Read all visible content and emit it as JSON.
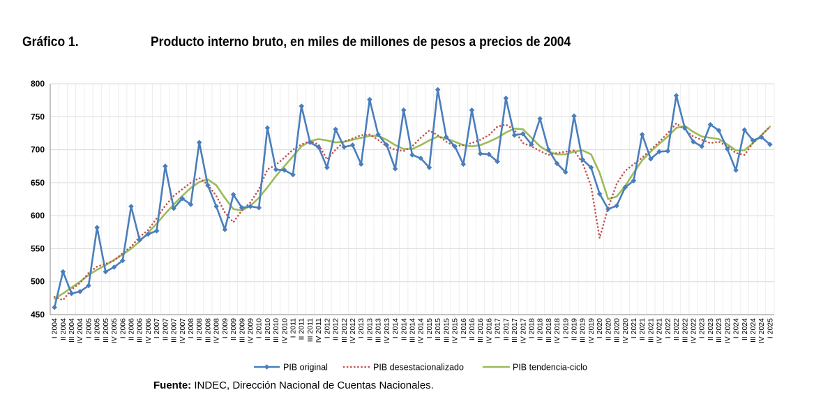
{
  "header": {
    "figure_label": "Gráfico 1.",
    "title": "Producto interno bruto, en miles de millones de pesos a precios de 2004"
  },
  "footer": {
    "source_label": "Fuente:",
    "source_text": " INDEC, Dirección Nacional de Cuentas Nacionales."
  },
  "chart_data": {
    "type": "line",
    "ylim": [
      450,
      800
    ],
    "yticks": [
      450,
      500,
      550,
      600,
      650,
      700,
      750,
      800
    ],
    "grid": true,
    "legend_position": "bottom",
    "categories": [
      "I 2004",
      "II 2004",
      "III 2004",
      "IV 2004",
      "I 2005",
      "II 2005",
      "III 2005",
      "IV 2005",
      "I 2006",
      "II 2006",
      "III 2006",
      "IV 2006",
      "I 2007",
      "II 2007",
      "III 2007",
      "IV 2007",
      "I 2008",
      "II 2008",
      "III 2008",
      "IV 2008",
      "I 2009",
      "II 2009",
      "III 2009",
      "IV 2009",
      "I 2010",
      "II 2010",
      "III 2010",
      "IV 2010",
      "I 2011",
      "II 2011",
      "III 2011",
      "IV 2011",
      "I 2012",
      "II 2012",
      "III 2012",
      "IV 2012",
      "I 2013",
      "II 2013",
      "III 2013",
      "IV 2013",
      "I 2014",
      "II 2014",
      "III 2014",
      "IV 2014",
      "I 2015",
      "II 2015",
      "III 2015",
      "IV 2015",
      "I 2016",
      "II 2016",
      "III 2016",
      "IV 2016",
      "I 2017",
      "II 2017",
      "III 2017",
      "IV 2017",
      "I 2018",
      "II 2018",
      "III 2018",
      "IV 2018",
      "I 2019",
      "II 2019",
      "III 2019",
      "IV 2019",
      "I 2020",
      "II 2020",
      "III 2020",
      "IV 2020",
      "I 2021",
      "II 2021",
      "III 2021",
      "IV 2021",
      "I 2022",
      "II 2022",
      "III 2022",
      "IV 2022",
      "I 2023",
      "II 2023",
      "III 2023",
      "IV 2023",
      "I 2024",
      "II 2024",
      "III 2024",
      "IV 2024",
      "I 2025"
    ],
    "series": [
      {
        "name": "PIB original",
        "color": "#4a7ebb",
        "style": "solid-diamond-markers",
        "values": [
          461,
          515,
          482,
          485,
          494,
          582,
          515,
          522,
          532,
          614,
          563,
          572,
          577,
          675,
          611,
          626,
          617,
          711,
          646,
          614,
          579,
          632,
          612,
          614,
          612,
          733,
          670,
          669,
          662,
          766,
          711,
          704,
          673,
          731,
          704,
          707,
          678,
          776,
          723,
          707,
          671,
          760,
          692,
          687,
          673,
          791,
          719,
          705,
          678,
          760,
          694,
          693,
          682,
          778,
          722,
          724,
          708,
          747,
          700,
          679,
          666,
          751,
          685,
          673,
          633,
          610,
          615,
          643,
          653,
          723,
          686,
          697,
          698,
          782,
          733,
          712,
          705,
          738,
          729,
          701,
          669,
          730,
          714,
          719,
          708
        ]
      },
      {
        "name": "PIB desestacionalizado",
        "color": "#c0504d",
        "style": "dotted",
        "values": [
          477,
          472,
          488,
          498,
          513,
          523,
          527,
          532,
          543,
          553,
          568,
          578,
          596,
          615,
          630,
          640,
          650,
          657,
          647,
          630,
          605,
          590,
          608,
          620,
          640,
          670,
          677,
          688,
          700,
          708,
          713,
          708,
          685,
          700,
          712,
          717,
          722,
          723,
          715,
          705,
          700,
          698,
          705,
          718,
          729,
          722,
          712,
          705,
          707,
          710,
          715,
          722,
          735,
          738,
          730,
          710,
          705,
          698,
          692,
          695,
          697,
          699,
          680,
          645,
          566,
          612,
          648,
          668,
          678,
          688,
          700,
          712,
          725,
          740,
          730,
          720,
          715,
          710,
          712,
          705,
          695,
          692,
          710,
          722,
          735
        ]
      },
      {
        "name": "PIB tendencia-ciclo",
        "color": "#9bbb59",
        "style": "solid",
        "values": [
          474,
          482,
          491,
          500,
          510,
          518,
          525,
          533,
          541,
          550,
          561,
          574,
          588,
          603,
          617,
          630,
          642,
          651,
          655,
          646,
          627,
          610,
          608,
          615,
          627,
          643,
          660,
          675,
          690,
          705,
          713,
          716,
          714,
          711,
          712,
          715,
          718,
          721,
          721,
          715,
          707,
          701,
          701,
          707,
          714,
          720,
          717,
          712,
          707,
          705,
          707,
          712,
          718,
          726,
          732,
          731,
          718,
          705,
          697,
          693,
          693,
          697,
          699,
          693,
          665,
          625,
          629,
          645,
          665,
          684,
          697,
          709,
          720,
          733,
          736,
          727,
          720,
          718,
          716,
          708,
          699,
          699,
          710,
          722,
          735
        ]
      }
    ]
  }
}
